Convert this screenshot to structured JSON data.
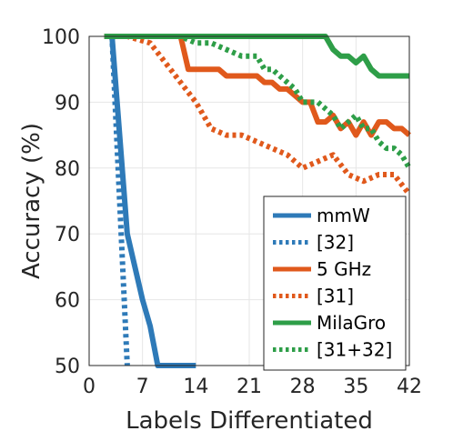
{
  "chart_data": {
    "type": "line",
    "title": "",
    "xlabel": "Labels Differentiated",
    "ylabel": "Accuracy (%)",
    "xlim": [
      0,
      42
    ],
    "ylim": [
      50,
      100
    ],
    "xticks": [
      0,
      7,
      14,
      21,
      28,
      35,
      42
    ],
    "yticks": [
      50,
      60,
      70,
      80,
      90,
      100
    ],
    "grid": true,
    "legend_position": "bottom-right",
    "series": [
      {
        "name": "mmW",
        "color": "#2e7ab8",
        "style": "solid",
        "x": [
          2,
          3,
          4,
          5,
          6,
          7,
          8,
          9,
          10,
          14
        ],
        "y": [
          100,
          100,
          85,
          70,
          65,
          60,
          56,
          50,
          50,
          50
        ]
      },
      {
        "name": "[32]",
        "color": "#2e7ab8",
        "style": "dotted",
        "x": [
          2,
          3,
          4,
          5
        ],
        "y": [
          100,
          100,
          75,
          50
        ]
      },
      {
        "name": "5 GHz",
        "color": "#e0591c",
        "style": "solid",
        "x": [
          2,
          12,
          13,
          17,
          18,
          22,
          23,
          24,
          25,
          26,
          27,
          28,
          29,
          30,
          31,
          32,
          33,
          34,
          35,
          36,
          37,
          38,
          39,
          40,
          41,
          42
        ],
        "y": [
          100,
          100,
          95,
          95,
          94,
          94,
          93,
          93,
          92,
          92,
          91,
          90,
          90,
          87,
          87,
          88,
          86,
          87,
          85,
          87,
          85,
          87,
          87,
          86,
          86,
          85
        ]
      },
      {
        "name": "[31]",
        "color": "#e0591c",
        "style": "dotted",
        "x": [
          2,
          5,
          8,
          10,
          12,
          14,
          16,
          18,
          20,
          22,
          24,
          26,
          28,
          30,
          32,
          34,
          36,
          38,
          40,
          42
        ],
        "y": [
          100,
          100,
          99,
          96,
          93,
          90,
          86,
          85,
          85,
          84,
          83,
          82,
          80,
          81,
          82,
          79,
          78,
          79,
          79,
          76
        ]
      },
      {
        "name": "MilaGro",
        "color": "#2e9e48",
        "style": "solid",
        "x": [
          2,
          31,
          32,
          33,
          34,
          35,
          36,
          37,
          38,
          39,
          40,
          41,
          42
        ],
        "y": [
          100,
          100,
          98,
          97,
          97,
          96,
          97,
          95,
          94,
          94,
          94,
          94,
          94
        ]
      },
      {
        "name": "[31+32]",
        "color": "#2e9e48",
        "style": "dotted",
        "x": [
          2,
          12,
          14,
          16,
          18,
          20,
          22,
          23,
          24,
          26,
          27,
          28,
          29,
          30,
          31,
          32,
          33,
          34,
          35,
          36,
          37,
          38,
          39,
          40,
          41,
          42
        ],
        "y": [
          100,
          100,
          99,
          99,
          98,
          97,
          97,
          95,
          95,
          93,
          92,
          90,
          90,
          90,
          89,
          88,
          86,
          87,
          88,
          86,
          86,
          84,
          83,
          83,
          82,
          80
        ]
      }
    ]
  }
}
